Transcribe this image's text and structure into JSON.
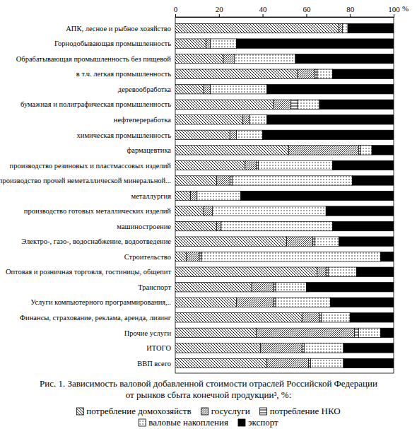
{
  "chart_data": {
    "type": "bar",
    "orientation": "horizontal",
    "stacked": true,
    "title": "Рис. 1. Зависимость валовой добавленной стоимости отраслей Российской Федерации от рынков сбыта конечной продукции³, %:",
    "x_label": "%",
    "xlim": [
      0,
      100
    ],
    "xticks": [
      0,
      20,
      40,
      60,
      80,
      100
    ],
    "grid": false,
    "legend": "bottom",
    "categories": [
      "АПК, лесное и рыбное хозяйство",
      "Горнодобывающая промышленность",
      "Обрабатывающая промышленность без пищевой",
      "в т.ч. легкая промышленность",
      "деревообработка",
      "бумажная и полиграфическая промышленность",
      "нефтепереработка",
      "химическая промышленность",
      "фармацевтика",
      "производство резиновых и пластмассовых изделий",
      "производство прочей неметаллической минеральной...",
      "металлургия",
      "производство готовых металлических изделий",
      "машиностроение",
      "Электро-, газо-, водоснабжение, водоотведение",
      "Строительство",
      "Оптовая и розничная торговля, гостиницы, общепит",
      "Транспорт",
      "Услуги компьютерного программирования,..",
      "Финансы, страхование, реклама, аренда, лизинг",
      "Прочие услуги",
      "ИТОГО",
      "ВВП всего"
    ],
    "series": [
      {
        "name": "потребление домохозяйств",
        "color": "#000000",
        "values": [
          75,
          14,
          22,
          56,
          13,
          45,
          31,
          25,
          52,
          32,
          19,
          7,
          13,
          19,
          51,
          5,
          65,
          35,
          28,
          58,
          37,
          39,
          42
        ]
      },
      {
        "name": "госуслуги",
        "color": "#000000",
        "values": [
          1.5,
          2,
          5,
          8,
          3,
          8,
          3,
          3,
          32,
          5,
          6,
          3,
          4,
          2,
          12,
          6,
          4,
          10,
          17,
          8,
          45,
          19,
          19
        ]
      },
      {
        "name": "потребление НКО",
        "color": "#000000",
        "values": [
          0,
          0,
          0,
          1,
          0,
          3,
          0,
          0,
          1,
          1,
          1,
          0,
          0,
          0,
          1,
          1,
          1,
          1,
          1,
          1,
          2,
          1,
          1
        ]
      },
      {
        "name": "валовые накопления",
        "color": "#000000",
        "values": [
          2.5,
          12,
          28,
          7,
          26,
          10,
          8,
          12,
          5,
          34,
          55,
          20,
          52,
          51,
          11,
          82,
          13,
          14,
          25,
          13,
          10,
          18,
          15
        ]
      },
      {
        "name": "экспорт",
        "color": "#000000",
        "values": [
          21,
          72,
          45,
          28,
          58,
          34,
          58,
          60,
          10,
          28,
          19,
          70,
          31,
          28,
          25,
          6,
          17,
          40,
          29,
          20,
          6,
          23,
          23
        ]
      }
    ]
  }
}
